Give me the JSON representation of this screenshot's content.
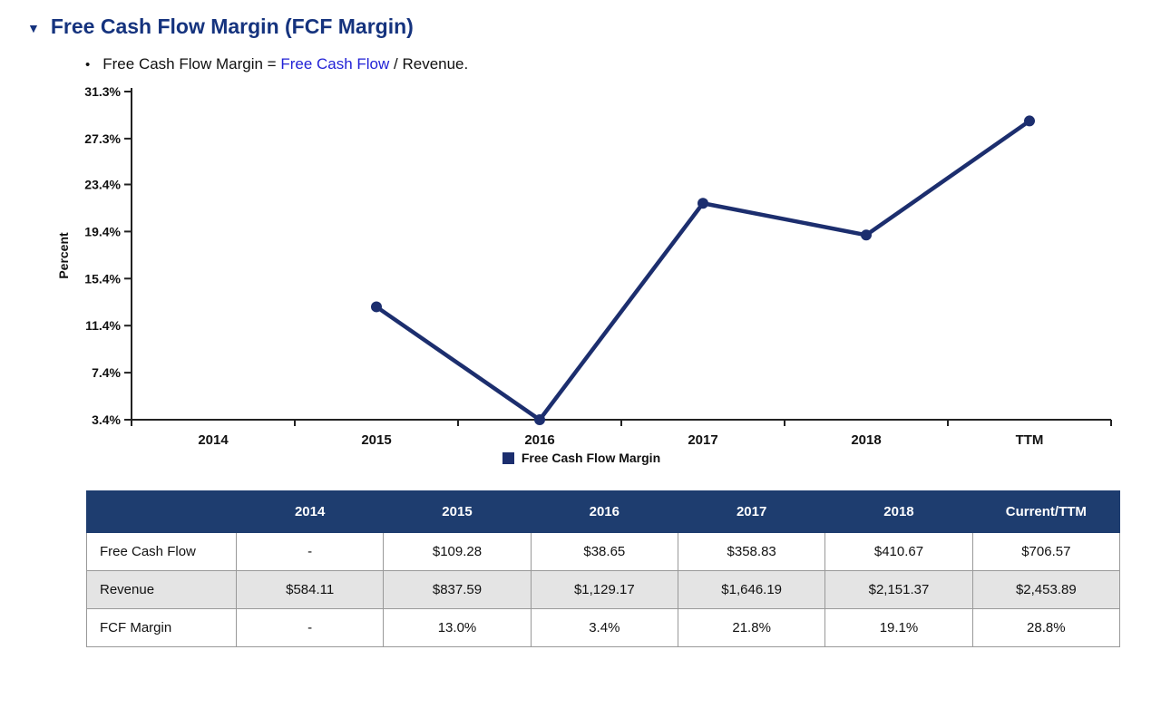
{
  "icons": {
    "collapse": "▼",
    "bullet": "•"
  },
  "colors": {
    "heading": "#15337e",
    "line": "#1c2e6e",
    "table_header_bg": "#1e3d6f",
    "link": "#2222d6",
    "alt_row": "#e4e4e4"
  },
  "page": {
    "title": "Free Cash Flow Margin (FCF Margin)",
    "bullet": {
      "prefix": "Free Cash Flow Margin = ",
      "link": "Free Cash Flow",
      "suffix": " / Revenue."
    }
  },
  "chart_data": {
    "type": "line",
    "title": "",
    "ylabel": "Percent",
    "xlabel": "",
    "categories": [
      "2014",
      "2015",
      "2016",
      "2017",
      "2018",
      "TTM"
    ],
    "series": [
      {
        "name": "Free Cash Flow Margin",
        "values": [
          null,
          13.0,
          3.4,
          21.8,
          19.1,
          28.8
        ]
      }
    ],
    "ylim": [
      3.4,
      31.3
    ],
    "y_ticks": [
      3.4,
      7.4,
      11.4,
      15.4,
      19.4,
      23.4,
      27.3,
      31.3
    ],
    "y_tick_labels": [
      "3.4%",
      "7.4%",
      "11.4%",
      "15.4%",
      "19.4%",
      "23.4%",
      "27.3%",
      "31.3%"
    ],
    "grid": false,
    "legend": "Free Cash Flow Margin",
    "legend_position": "bottom"
  },
  "table": {
    "headers": [
      "",
      "2014",
      "2015",
      "2016",
      "2017",
      "2018",
      "Current/TTM"
    ],
    "rows": [
      {
        "label": "Free Cash Flow",
        "values": [
          "-",
          "$109.28",
          "$38.65",
          "$358.83",
          "$410.67",
          "$706.57"
        ]
      },
      {
        "label": "Revenue",
        "values": [
          "$584.11",
          "$837.59",
          "$1,129.17",
          "$1,646.19",
          "$2,151.37",
          "$2,453.89"
        ]
      },
      {
        "label": "FCF Margin",
        "values": [
          "-",
          "13.0%",
          "3.4%",
          "21.8%",
          "19.1%",
          "28.8%"
        ]
      }
    ]
  }
}
